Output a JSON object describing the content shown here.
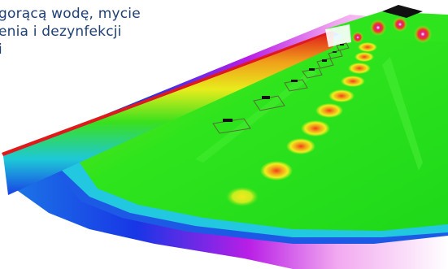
{
  "caption": {
    "lines": [
      "gorącą wodę, mycie",
      "enia i dezynfekcji",
      "i"
    ]
  },
  "visualization": {
    "colors": {
      "floor_green": "#28e01a",
      "hot_yellow": "#f4ef1e",
      "hot_orange": "#f2701a",
      "hot_red": "#e0201a",
      "edge_blue": "#1836e6",
      "edge_magenta": "#d91ee6",
      "edge_cyan": "#26d9e0",
      "wall_black": "#111111",
      "text_blue": "#1e3f73"
    }
  }
}
